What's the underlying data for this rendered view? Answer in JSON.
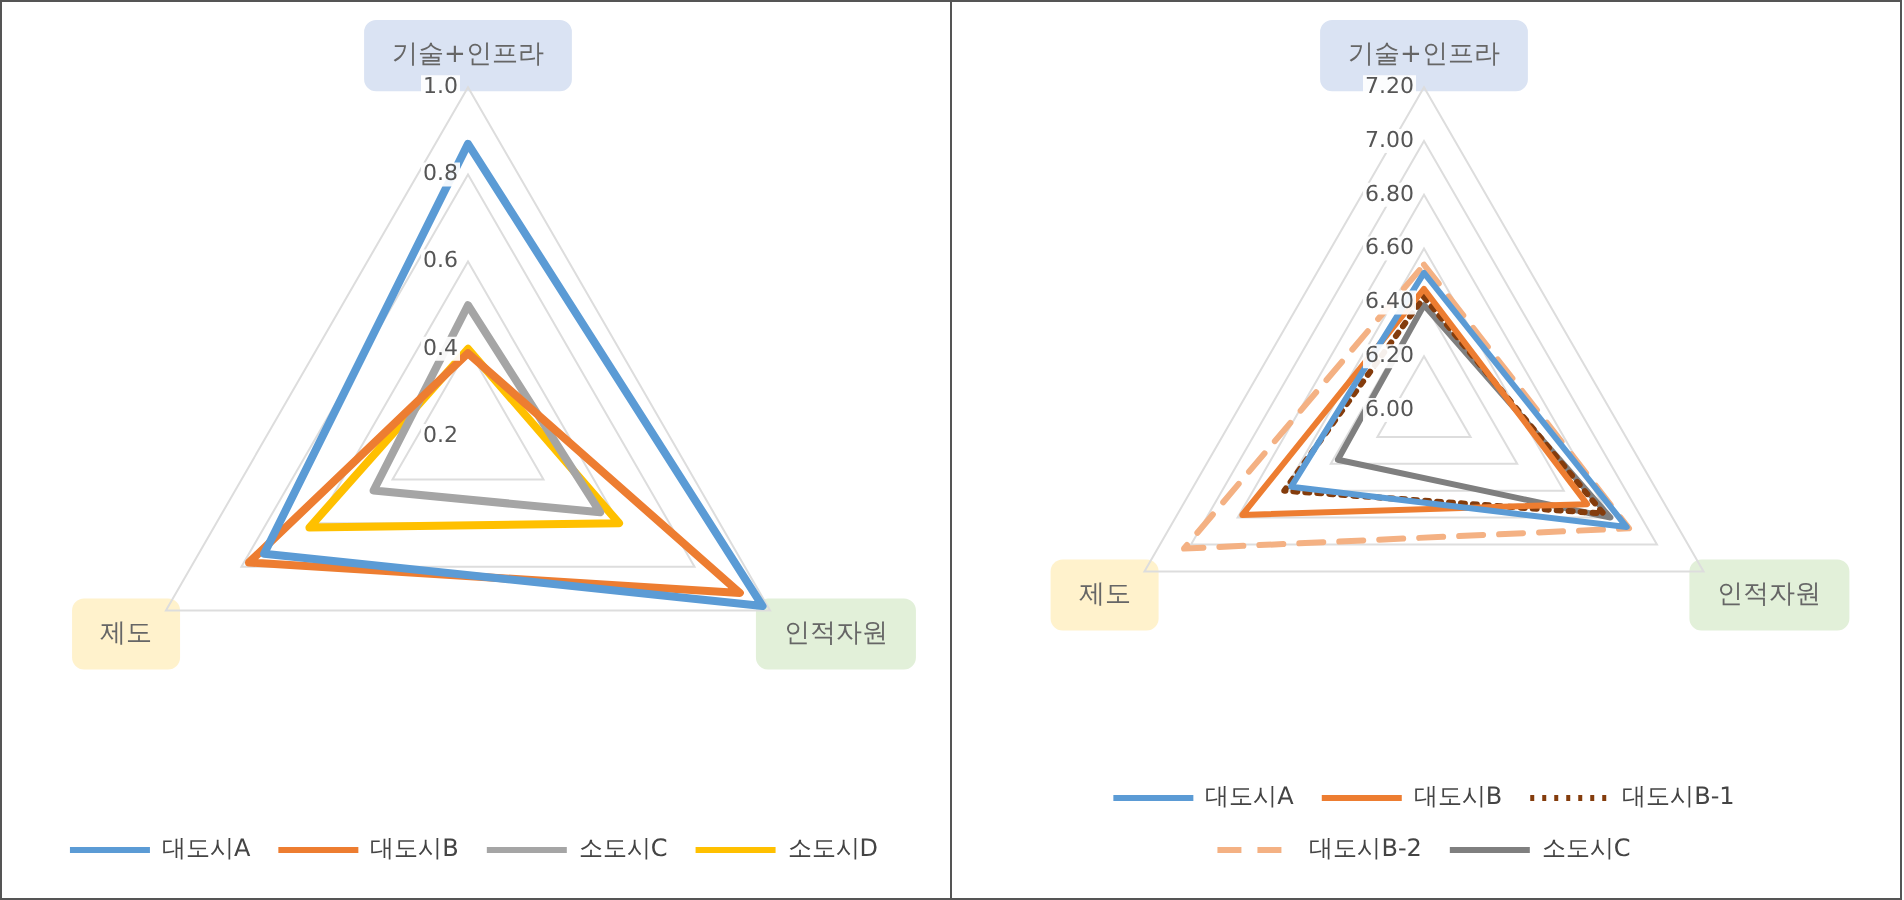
{
  "chart_data": [
    {
      "type": "radar",
      "categories": [
        "기술+인프라",
        "인적자원",
        "제도"
      ],
      "ylim": [
        0.2,
        1.0
      ],
      "yticks": [
        0.2,
        0.4,
        0.6,
        0.8,
        {
          "value": 1.0,
          "label": "1.0"
        }
      ],
      "grid": true,
      "legend": "bottom",
      "marker": "none",
      "series": [
        {
          "name": "대도시A",
          "color": "#5b9bd5",
          "values": [
            0.87,
            0.98,
            0.74
          ]
        },
        {
          "name": "대도시B",
          "color": "#ed7d31",
          "values": [
            0.39,
            0.92,
            0.78
          ]
        },
        {
          "name": "소도시C",
          "color": "#a5a5a5",
          "values": [
            0.5,
            0.55,
            0.45
          ]
        },
        {
          "name": "소도시D",
          "color": "#ffc000",
          "values": [
            0.4,
            0.6,
            0.62
          ]
        }
      ]
    },
    {
      "type": "radar",
      "categories": [
        "기술+인프라",
        "인적자원",
        "제도"
      ],
      "ylim": [
        6.0,
        7.2
      ],
      "yticks": [
        {
          "value": 6.0,
          "label": "6.00"
        },
        {
          "value": 6.2,
          "label": "6.20"
        },
        {
          "value": 6.4,
          "label": "6.40"
        },
        {
          "value": 6.6,
          "label": "6.60"
        },
        {
          "value": 6.8,
          "label": "6.80"
        },
        {
          "value": 7.0,
          "label": "7.00"
        },
        {
          "value": 7.2,
          "label": "7.20"
        }
      ],
      "grid": true,
      "legend": "bottom",
      "marker": "none",
      "series": [
        {
          "name": "대도시A",
          "color": "#5b9bd5",
          "values": [
            6.51,
            6.87,
            6.57
          ],
          "line_style": "solid"
        },
        {
          "name": "대도시B",
          "color": "#ed7d31",
          "values": [
            6.45,
            6.7,
            6.78
          ],
          "line_style": "solid"
        },
        {
          "name": "대도시B-1",
          "color": "#843c0c",
          "values": [
            6.42,
            6.77,
            6.6
          ],
          "line_style": "dotted"
        },
        {
          "name": "대도시B-2",
          "color": "#f4b183",
          "values": [
            6.54,
            6.88,
            7.03
          ],
          "line_style": "dashed"
        },
        {
          "name": "소도시C",
          "color": "#7f7f7f",
          "values": [
            6.39,
            6.8,
            6.37
          ],
          "line_style": "solid"
        }
      ]
    }
  ]
}
